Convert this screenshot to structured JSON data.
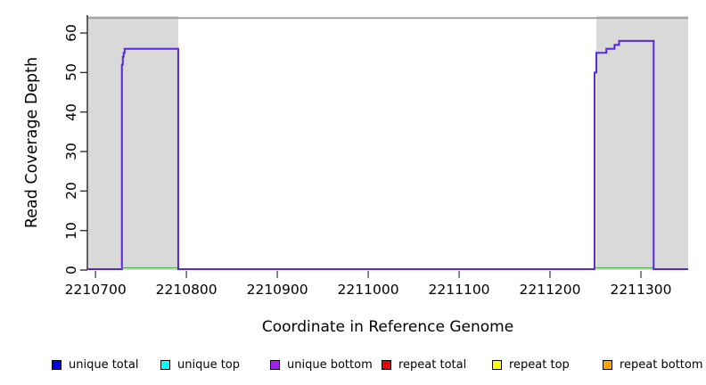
{
  "page": {
    "background": "#ffffff"
  },
  "chart_data": {
    "type": "line",
    "title": "",
    "xlabel": "Coordinate in Reference Genome",
    "ylabel": "Read Coverage Depth",
    "xlim": [
      2210691,
      2211352
    ],
    "ylim": [
      0,
      64.3
    ],
    "x_ticks": [
      2210700,
      2210800,
      2210900,
      2211000,
      2211100,
      2211200,
      2211300
    ],
    "y_ticks": [
      0,
      10,
      20,
      30,
      40,
      50,
      60
    ],
    "grid": false,
    "legend_position": "bottom",
    "shaded_regions": [
      {
        "x0": 2210691,
        "x1": 2210791,
        "color": "#d9d9d9"
      },
      {
        "x0": 2211251,
        "x1": 2211352,
        "color": "#d9d9d9"
      }
    ],
    "offscale_top_line": {
      "value": 63.8,
      "color": "#999999"
    },
    "series": [
      {
        "name": "unique coverage step line",
        "color": "#5629E0",
        "draw": "step-after",
        "start_value": 0,
        "points": [
          [
            2210729,
            52
          ],
          [
            2210730,
            54
          ],
          [
            2210731,
            55
          ],
          [
            2210732,
            56
          ],
          [
            2210791,
            0
          ],
          [
            2211249,
            50
          ],
          [
            2211251,
            55
          ],
          [
            2211262,
            56
          ],
          [
            2211271,
            57
          ],
          [
            2211276,
            58
          ],
          [
            2211314,
            0
          ]
        ]
      },
      {
        "name": "zero-baseline green segments",
        "color": "#57B657",
        "y": 0.55,
        "segments": [
          [
            2210729,
            2210791
          ],
          [
            2211249,
            2211314
          ]
        ]
      }
    ]
  },
  "legend": {
    "items": [
      {
        "label": "unique total",
        "color": "#0000EE"
      },
      {
        "label": "unique top",
        "color": "#00FFFF"
      },
      {
        "label": "unique bottom",
        "color": "#A020F0"
      },
      {
        "label": "repeat total",
        "color": "#EE0000"
      },
      {
        "label": "repeat top",
        "color": "#FFFF00"
      },
      {
        "label": "repeat bottom",
        "color": "#FFA500"
      }
    ]
  }
}
